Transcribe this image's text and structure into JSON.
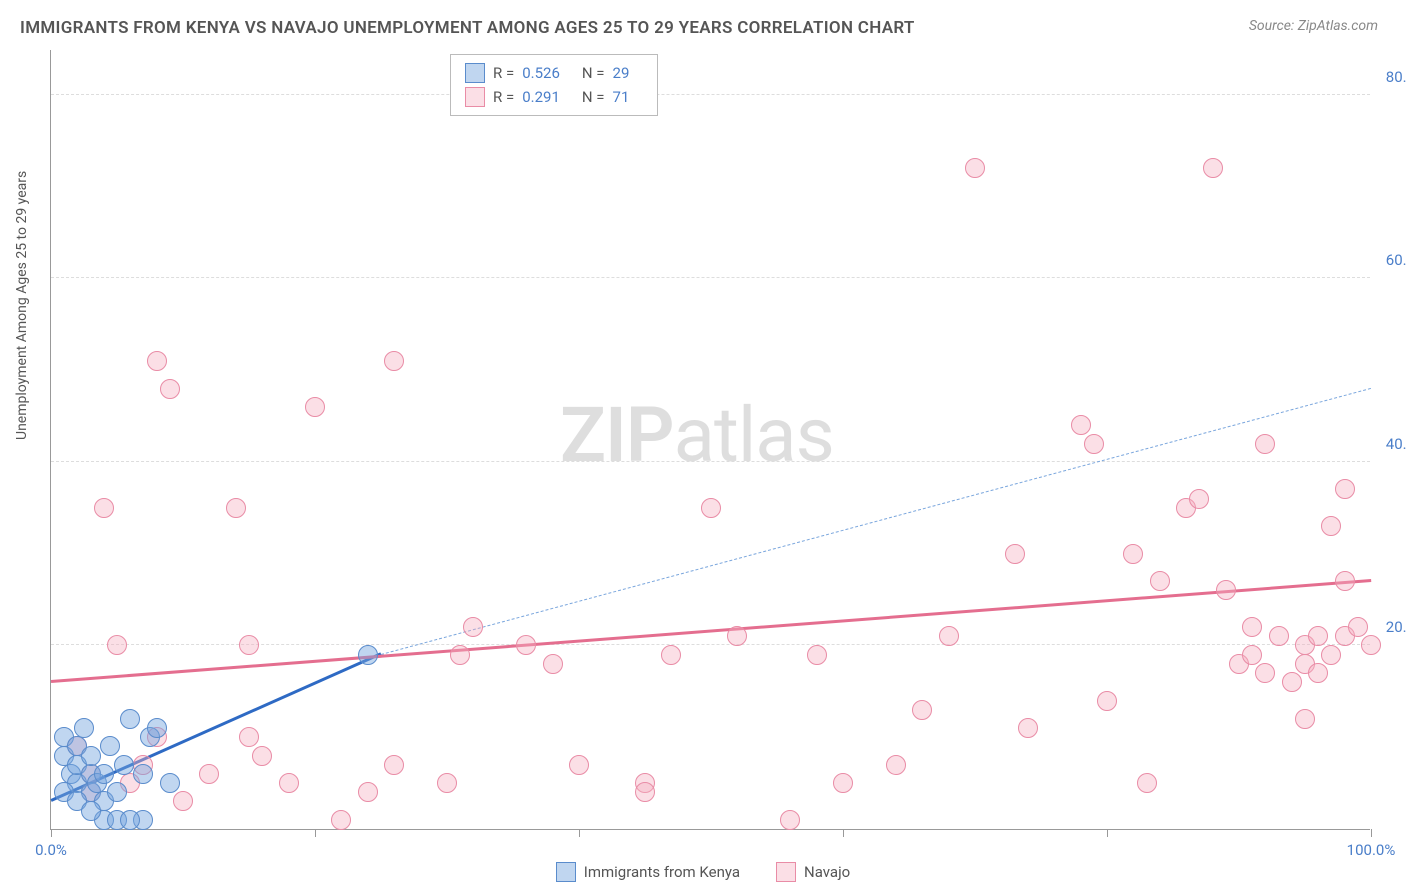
{
  "title": "IMMIGRANTS FROM KENYA VS NAVAJO UNEMPLOYMENT AMONG AGES 25 TO 29 YEARS CORRELATION CHART",
  "source": "Source: ZipAtlas.com",
  "y_axis_label": "Unemployment Among Ages 25 to 29 years",
  "watermark_a": "ZIP",
  "watermark_b": "atlas",
  "chart": {
    "type": "scatter",
    "xlim": [
      0,
      100
    ],
    "ylim": [
      0,
      85
    ],
    "x_ticks": [
      0,
      20,
      40,
      60,
      80,
      100
    ],
    "x_tick_labels": [
      "0.0%",
      "",
      "",
      "",
      "",
      "100.0%"
    ],
    "y_ticks": [
      20,
      40,
      60,
      80
    ],
    "y_tick_labels": [
      "20.0%",
      "40.0%",
      "60.0%",
      "80.0%"
    ],
    "grid_color": "#dddddd",
    "axis_color": "#999999",
    "background_color": "#ffffff",
    "tick_font_color": "#4a7ec9",
    "tick_fontsize": 15,
    "point_radius": 10,
    "series": [
      {
        "name": "Immigrants from Kenya",
        "key": "blue",
        "color_fill": "rgba(115,163,222,0.45)",
        "color_stroke": "#5a8ccc",
        "R": "0.526",
        "N": "29",
        "regression": {
          "x1": 0,
          "y1": 3,
          "x2": 25,
          "y2": 19,
          "color": "#2e6ac4",
          "width": 2.5,
          "extrapolate": {
            "x1": 25,
            "y1": 19,
            "x2": 100,
            "y2": 48,
            "dashed": true,
            "color": "#7aa6dd"
          }
        },
        "points": [
          [
            1,
            10
          ],
          [
            1,
            8
          ],
          [
            1.5,
            6
          ],
          [
            2,
            9
          ],
          [
            2,
            5
          ],
          [
            2,
            7
          ],
          [
            2.5,
            11
          ],
          [
            3,
            6
          ],
          [
            3,
            4
          ],
          [
            3,
            8
          ],
          [
            3.5,
            5
          ],
          [
            4,
            3
          ],
          [
            4,
            6
          ],
          [
            4,
            1
          ],
          [
            4.5,
            9
          ],
          [
            5,
            1
          ],
          [
            5,
            4
          ],
          [
            5.5,
            7
          ],
          [
            6,
            12
          ],
          [
            7,
            1
          ],
          [
            7,
            6
          ],
          [
            7.5,
            10
          ],
          [
            8,
            11
          ],
          [
            9,
            5
          ],
          [
            1,
            4
          ],
          [
            2,
            3
          ],
          [
            3,
            2
          ],
          [
            6,
            1
          ],
          [
            24,
            19
          ]
        ]
      },
      {
        "name": "Navajo",
        "key": "pink",
        "color_fill": "rgba(244,174,192,0.4)",
        "color_stroke": "#e98ca6",
        "R": "0.291",
        "N": "71",
        "regression": {
          "x1": 0,
          "y1": 16,
          "x2": 100,
          "y2": 27,
          "color": "#e46e8f",
          "width": 2.5
        },
        "points": [
          [
            2,
            9
          ],
          [
            3,
            6
          ],
          [
            4,
            35
          ],
          [
            5,
            20
          ],
          [
            6,
            5
          ],
          [
            7,
            7
          ],
          [
            8,
            51
          ],
          [
            8,
            10
          ],
          [
            9,
            48
          ],
          [
            14,
            35
          ],
          [
            15,
            20
          ],
          [
            15,
            10
          ],
          [
            16,
            8
          ],
          [
            20,
            46
          ],
          [
            22,
            1
          ],
          [
            26,
            51
          ],
          [
            26,
            7
          ],
          [
            30,
            5
          ],
          [
            31,
            19
          ],
          [
            32,
            22
          ],
          [
            36,
            20
          ],
          [
            40,
            7
          ],
          [
            45,
            5
          ],
          [
            45,
            4
          ],
          [
            47,
            19
          ],
          [
            50,
            35
          ],
          [
            52,
            21
          ],
          [
            56,
            1
          ],
          [
            58,
            19
          ],
          [
            60,
            5
          ],
          [
            64,
            7
          ],
          [
            66,
            13
          ],
          [
            70,
            72
          ],
          [
            73,
            30
          ],
          [
            74,
            11
          ],
          [
            78,
            44
          ],
          [
            79,
            42
          ],
          [
            82,
            30
          ],
          [
            83,
            5
          ],
          [
            84,
            27
          ],
          [
            86,
            35
          ],
          [
            87,
            36
          ],
          [
            88,
            72
          ],
          [
            89,
            26
          ],
          [
            90,
            18
          ],
          [
            91,
            19
          ],
          [
            91,
            22
          ],
          [
            92,
            17
          ],
          [
            92,
            42
          ],
          [
            93,
            21
          ],
          [
            94,
            16
          ],
          [
            95,
            12
          ],
          [
            95,
            18
          ],
          [
            95,
            20
          ],
          [
            96,
            17
          ],
          [
            96,
            21
          ],
          [
            97,
            33
          ],
          [
            97,
            19
          ],
          [
            98,
            37
          ],
          [
            98,
            27
          ],
          [
            98,
            21
          ],
          [
            99,
            22
          ],
          [
            100,
            20
          ],
          [
            3,
            4
          ],
          [
            10,
            3
          ],
          [
            12,
            6
          ],
          [
            18,
            5
          ],
          [
            24,
            4
          ],
          [
            38,
            18
          ],
          [
            68,
            21
          ],
          [
            80,
            14
          ]
        ]
      }
    ]
  },
  "legend_bottom": [
    {
      "label": "Immigrants from Kenya",
      "key": "blue"
    },
    {
      "label": "Navajo",
      "key": "pink"
    }
  ]
}
